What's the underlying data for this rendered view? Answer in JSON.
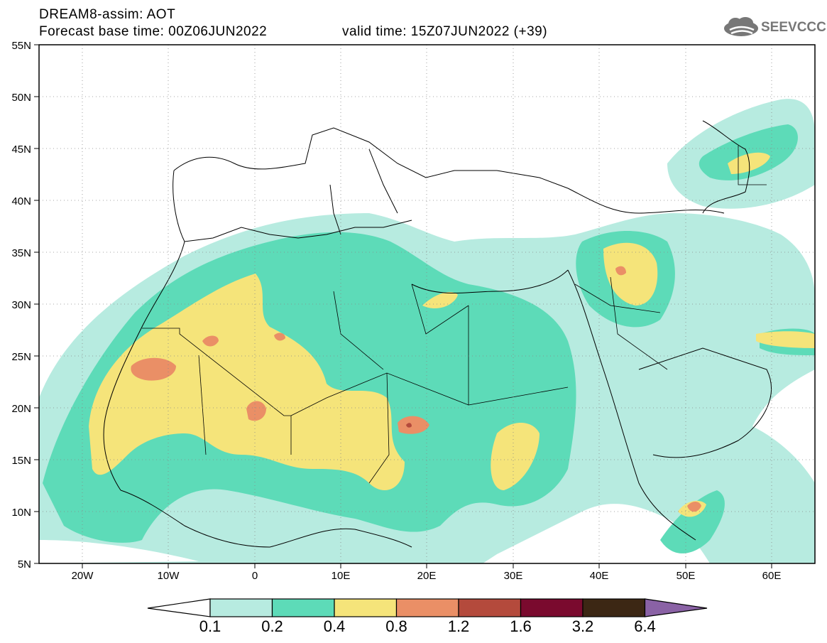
{
  "header": {
    "line1": "DREAM8-assim: AOT",
    "line2": "Forecast base time: 00Z06JUN2022",
    "valid": "valid time: 15Z07JUN2022 (+39)",
    "logo": "SEEVCCC",
    "logo_icon": "cloud-icon"
  },
  "axes": {
    "lat_labels": [
      "55N",
      "50N",
      "45N",
      "40N",
      "35N",
      "30N",
      "25N",
      "20N",
      "15N",
      "10N",
      "5N"
    ],
    "lon_labels": [
      "20W",
      "10W",
      "0",
      "10E",
      "20E",
      "30E",
      "40E",
      "50E",
      "60E"
    ]
  },
  "colorbar": {
    "labels": [
      "0.1",
      "0.2",
      "0.4",
      "0.8",
      "1.2",
      "1.6",
      "3.2",
      "6.4"
    ],
    "colors": [
      "#ffffff",
      "#b7ebe0",
      "#5ddbb8",
      "#f5e47a",
      "#ea8f66",
      "#b44a3c",
      "#7a0a2e",
      "#3c2714",
      "#8a62a5"
    ]
  },
  "colors": {
    "bin1": "#b7ebe0",
    "bin2": "#5ddbb8",
    "bin3": "#f5e47a",
    "bin4": "#ea8f66",
    "bin5": "#b44a3c"
  }
}
